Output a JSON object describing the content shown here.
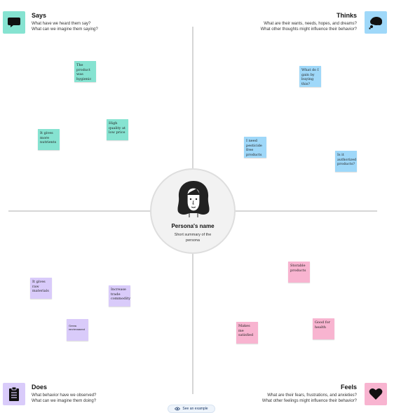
{
  "quadrants": {
    "says": {
      "title": "Says",
      "subtitle_1": "What have we heard them say?",
      "subtitle_2": "What can we imagine them saying?",
      "icon": "speech-bubble-icon",
      "color": "#86e3d1"
    },
    "thinks": {
      "title": "Thinks",
      "subtitle_1": "What are their wants, needs, hopes, and dreams?",
      "subtitle_2": "What other thoughts might influence their behavior?",
      "icon": "thought-bubble-icon",
      "color": "#9fd8f9"
    },
    "does": {
      "title": "Does",
      "subtitle_1": "What behavior have we observed?",
      "subtitle_2": "What can we imagine them doing?",
      "icon": "clipboard-icon",
      "color": "#d9cbfa"
    },
    "feels": {
      "title": "Feels",
      "subtitle_1": "What are their fears, frustrations, and anxieties?",
      "subtitle_2": "What other feelings might influence their behavior?",
      "icon": "heart-icon",
      "color": "#f8b4d0"
    }
  },
  "stickies": {
    "says": [
      "The product was hygienic",
      "High quality at low price",
      "It gives more nutrients"
    ],
    "thinks": [
      "What do I gain by buying this?",
      "I need pesticide free products",
      "Is it authorized products?"
    ],
    "does": [
      "It gives raw materials",
      "Increase trade commodity",
      "Green environment"
    ],
    "feels": [
      "Storable products",
      "Makes me satisfied",
      "Good for health"
    ]
  },
  "persona": {
    "name": "Persona's name",
    "summary": "Short summary of the persona",
    "avatar_icon": "persona-avatar-icon"
  },
  "footer": {
    "see_example_label": "See an example",
    "icon": "eye-icon"
  }
}
